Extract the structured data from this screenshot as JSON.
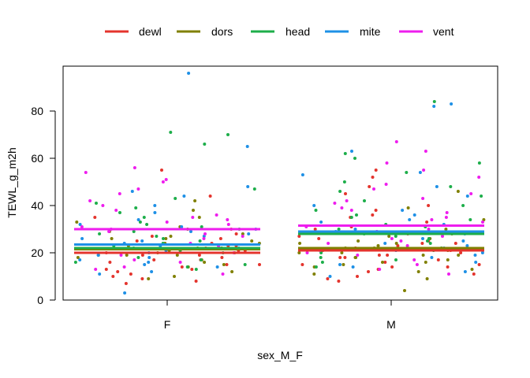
{
  "chart_data": {
    "type": "scatter",
    "title": "",
    "xlabel": "sex_M_F",
    "ylabel": "TEWL_g_m2h",
    "categories": [
      "F",
      "M"
    ],
    "ylim": [
      0,
      99
    ],
    "yticks": [
      0,
      20,
      40,
      60,
      80
    ],
    "grid": false,
    "legend_position": "top",
    "series": [
      {
        "name": "dewl",
        "color": "#E4342D",
        "mean": {
          "F": 20.0,
          "M": 21.0
        },
        "points": [
          [
            "F",
            8
          ],
          [
            "F",
            11
          ],
          [
            "F",
            13
          ],
          [
            "F",
            15
          ],
          [
            "F",
            17
          ],
          [
            "F",
            19
          ],
          [
            "F",
            20
          ],
          [
            "F",
            21
          ],
          [
            "F",
            22
          ],
          [
            "F",
            23
          ],
          [
            "F",
            24
          ],
          [
            "F",
            25
          ],
          [
            "F",
            18
          ],
          [
            "F",
            16
          ],
          [
            "F",
            14
          ],
          [
            "F",
            12
          ],
          [
            "F",
            10
          ],
          [
            "F",
            26
          ],
          [
            "F",
            28
          ],
          [
            "F",
            30
          ],
          [
            "F",
            35
          ],
          [
            "F",
            55
          ],
          [
            "F",
            44
          ],
          [
            "F",
            9
          ],
          [
            "F",
            7
          ],
          [
            "F",
            19
          ],
          [
            "F",
            21
          ],
          [
            "F",
            23
          ],
          [
            "F",
            27
          ],
          [
            "F",
            17
          ],
          [
            "F",
            15
          ],
          [
            "F",
            13
          ],
          [
            "M",
            9
          ],
          [
            "M",
            10
          ],
          [
            "M",
            12
          ],
          [
            "M",
            14
          ],
          [
            "M",
            15
          ],
          [
            "M",
            16
          ],
          [
            "M",
            17
          ],
          [
            "M",
            18
          ],
          [
            "M",
            19
          ],
          [
            "M",
            20
          ],
          [
            "M",
            21
          ],
          [
            "M",
            22
          ],
          [
            "M",
            23
          ],
          [
            "M",
            24
          ],
          [
            "M",
            25
          ],
          [
            "M",
            26
          ],
          [
            "M",
            28
          ],
          [
            "M",
            30
          ],
          [
            "M",
            33
          ],
          [
            "M",
            36
          ],
          [
            "M",
            40
          ],
          [
            "M",
            45
          ],
          [
            "M",
            48
          ],
          [
            "M",
            52
          ],
          [
            "M",
            55
          ],
          [
            "M",
            11
          ],
          [
            "M",
            13
          ],
          [
            "M",
            15
          ],
          [
            "M",
            18
          ],
          [
            "M",
            21
          ],
          [
            "M",
            24
          ],
          [
            "M",
            27
          ],
          [
            "M",
            31
          ],
          [
            "M",
            35
          ],
          [
            "M",
            38
          ],
          [
            "M",
            8
          ],
          [
            "M",
            14
          ],
          [
            "M",
            19
          ]
        ]
      },
      {
        "name": "dors",
        "color": "#808000",
        "mean": {
          "F": 21.5,
          "M": 22.0
        },
        "points": [
          [
            "F",
            10
          ],
          [
            "F",
            12
          ],
          [
            "F",
            14
          ],
          [
            "F",
            16
          ],
          [
            "F",
            18
          ],
          [
            "F",
            19
          ],
          [
            "F",
            20
          ],
          [
            "F",
            21
          ],
          [
            "F",
            22
          ],
          [
            "F",
            23
          ],
          [
            "F",
            24
          ],
          [
            "F",
            25
          ],
          [
            "F",
            26
          ],
          [
            "F",
            27
          ],
          [
            "F",
            28
          ],
          [
            "F",
            30
          ],
          [
            "F",
            33
          ],
          [
            "F",
            38
          ],
          [
            "F",
            42
          ],
          [
            "F",
            9
          ],
          [
            "F",
            15
          ],
          [
            "F",
            17
          ],
          [
            "F",
            19
          ],
          [
            "F",
            22
          ],
          [
            "F",
            24
          ],
          [
            "F",
            26
          ],
          [
            "F",
            29
          ],
          [
            "F",
            31
          ],
          [
            "F",
            35
          ],
          [
            "F",
            20
          ],
          [
            "M",
            4
          ],
          [
            "M",
            9
          ],
          [
            "M",
            11
          ],
          [
            "M",
            13
          ],
          [
            "M",
            14
          ],
          [
            "M",
            15
          ],
          [
            "M",
            16
          ],
          [
            "M",
            17
          ],
          [
            "M",
            18
          ],
          [
            "M",
            19
          ],
          [
            "M",
            20
          ],
          [
            "M",
            21
          ],
          [
            "M",
            22
          ],
          [
            "M",
            23
          ],
          [
            "M",
            24
          ],
          [
            "M",
            25
          ],
          [
            "M",
            26
          ],
          [
            "M",
            28
          ],
          [
            "M",
            30
          ],
          [
            "M",
            34
          ],
          [
            "M",
            39
          ],
          [
            "M",
            46
          ],
          [
            "M",
            18
          ],
          [
            "M",
            20
          ],
          [
            "M",
            22
          ],
          [
            "M",
            24
          ],
          [
            "M",
            12
          ],
          [
            "M",
            16
          ],
          [
            "M",
            19
          ],
          [
            "M",
            27
          ]
        ]
      },
      {
        "name": "head",
        "color": "#1DAE4A",
        "mean": {
          "F": 22.0,
          "M": 28.0
        },
        "points": [
          [
            "F",
            13
          ],
          [
            "F",
            15
          ],
          [
            "F",
            17
          ],
          [
            "F",
            19
          ],
          [
            "F",
            21
          ],
          [
            "F",
            23
          ],
          [
            "F",
            25
          ],
          [
            "F",
            27
          ],
          [
            "F",
            29
          ],
          [
            "F",
            31
          ],
          [
            "F",
            33
          ],
          [
            "F",
            35
          ],
          [
            "F",
            37
          ],
          [
            "F",
            39
          ],
          [
            "F",
            41
          ],
          [
            "F",
            43
          ],
          [
            "F",
            47
          ],
          [
            "F",
            66
          ],
          [
            "F",
            71
          ],
          [
            "F",
            70
          ],
          [
            "F",
            20
          ],
          [
            "F",
            22
          ],
          [
            "F",
            24
          ],
          [
            "F",
            26
          ],
          [
            "F",
            28
          ],
          [
            "F",
            30
          ],
          [
            "F",
            18
          ],
          [
            "F",
            16
          ],
          [
            "F",
            14
          ],
          [
            "F",
            32
          ],
          [
            "M",
            14
          ],
          [
            "M",
            16
          ],
          [
            "M",
            18
          ],
          [
            "M",
            20
          ],
          [
            "M",
            22
          ],
          [
            "M",
            24
          ],
          [
            "M",
            26
          ],
          [
            "M",
            28
          ],
          [
            "M",
            30
          ],
          [
            "M",
            32
          ],
          [
            "M",
            34
          ],
          [
            "M",
            36
          ],
          [
            "M",
            38
          ],
          [
            "M",
            40
          ],
          [
            "M",
            42
          ],
          [
            "M",
            44
          ],
          [
            "M",
            46
          ],
          [
            "M",
            50
          ],
          [
            "M",
            54
          ],
          [
            "M",
            58
          ],
          [
            "M",
            62
          ],
          [
            "M",
            84
          ],
          [
            "M",
            60
          ],
          [
            "M",
            48
          ],
          [
            "M",
            35
          ],
          [
            "M",
            27
          ],
          [
            "M",
            21
          ],
          [
            "M",
            17
          ],
          [
            "M",
            25
          ],
          [
            "M",
            31
          ]
        ]
      },
      {
        "name": "mite",
        "color": "#1E90E6",
        "mean": {
          "F": 23.5,
          "M": 29.0
        },
        "points": [
          [
            "F",
            3
          ],
          [
            "F",
            11
          ],
          [
            "F",
            14
          ],
          [
            "F",
            17
          ],
          [
            "F",
            19
          ],
          [
            "F",
            21
          ],
          [
            "F",
            23
          ],
          [
            "F",
            25
          ],
          [
            "F",
            27
          ],
          [
            "F",
            29
          ],
          [
            "F",
            31
          ],
          [
            "F",
            34
          ],
          [
            "F",
            37
          ],
          [
            "F",
            40
          ],
          [
            "F",
            44
          ],
          [
            "F",
            46
          ],
          [
            "F",
            48
          ],
          [
            "F",
            65
          ],
          [
            "F",
            96
          ],
          [
            "F",
            20
          ],
          [
            "F",
            22
          ],
          [
            "F",
            24
          ],
          [
            "F",
            26
          ],
          [
            "F",
            18
          ],
          [
            "F",
            16
          ],
          [
            "F",
            28
          ],
          [
            "F",
            30
          ],
          [
            "F",
            32
          ],
          [
            "F",
            12
          ],
          [
            "F",
            15
          ],
          [
            "M",
            10
          ],
          [
            "M",
            12
          ],
          [
            "M",
            14
          ],
          [
            "M",
            16
          ],
          [
            "M",
            18
          ],
          [
            "M",
            20
          ],
          [
            "M",
            22
          ],
          [
            "M",
            24
          ],
          [
            "M",
            26
          ],
          [
            "M",
            28
          ],
          [
            "M",
            30
          ],
          [
            "M",
            32
          ],
          [
            "M",
            34
          ],
          [
            "M",
            36
          ],
          [
            "M",
            38
          ],
          [
            "M",
            40
          ],
          [
            "M",
            44
          ],
          [
            "M",
            48
          ],
          [
            "M",
            53
          ],
          [
            "M",
            54
          ],
          [
            "M",
            63
          ],
          [
            "M",
            83
          ],
          [
            "M",
            82
          ],
          [
            "M",
            19
          ],
          [
            "M",
            21
          ],
          [
            "M",
            25
          ],
          [
            "M",
            29
          ],
          [
            "M",
            33
          ],
          [
            "M",
            15
          ],
          [
            "M",
            23
          ]
        ]
      },
      {
        "name": "vent",
        "color": "#EE1DEE",
        "mean": {
          "F": 30.0,
          "M": 31.5
        },
        "points": [
          [
            "F",
            11
          ],
          [
            "F",
            14
          ],
          [
            "F",
            17
          ],
          [
            "F",
            20
          ],
          [
            "F",
            23
          ],
          [
            "F",
            26
          ],
          [
            "F",
            28
          ],
          [
            "F",
            30
          ],
          [
            "F",
            32
          ],
          [
            "F",
            34
          ],
          [
            "F",
            36
          ],
          [
            "F",
            38
          ],
          [
            "F",
            40
          ],
          [
            "F",
            42
          ],
          [
            "F",
            45
          ],
          [
            "F",
            47
          ],
          [
            "F",
            50
          ],
          [
            "F",
            51
          ],
          [
            "F",
            54
          ],
          [
            "F",
            56
          ],
          [
            "F",
            24
          ],
          [
            "F",
            27
          ],
          [
            "F",
            29
          ],
          [
            "F",
            31
          ],
          [
            "F",
            19
          ],
          [
            "F",
            22
          ],
          [
            "F",
            33
          ],
          [
            "F",
            35
          ],
          [
            "F",
            16
          ],
          [
            "F",
            13
          ],
          [
            "M",
            11
          ],
          [
            "M",
            13
          ],
          [
            "M",
            15
          ],
          [
            "M",
            17
          ],
          [
            "M",
            19
          ],
          [
            "M",
            21
          ],
          [
            "M",
            23
          ],
          [
            "M",
            25
          ],
          [
            "M",
            27
          ],
          [
            "M",
            29
          ],
          [
            "M",
            31
          ],
          [
            "M",
            33
          ],
          [
            "M",
            35
          ],
          [
            "M",
            37
          ],
          [
            "M",
            39
          ],
          [
            "M",
            41
          ],
          [
            "M",
            43
          ],
          [
            "M",
            45
          ],
          [
            "M",
            47
          ],
          [
            "M",
            49
          ],
          [
            "M",
            52
          ],
          [
            "M",
            55
          ],
          [
            "M",
            58
          ],
          [
            "M",
            63
          ],
          [
            "M",
            67
          ],
          [
            "M",
            26
          ],
          [
            "M",
            30
          ],
          [
            "M",
            34
          ],
          [
            "M",
            38
          ],
          [
            "M",
            42
          ],
          [
            "M",
            20
          ],
          [
            "M",
            24
          ]
        ]
      }
    ]
  }
}
